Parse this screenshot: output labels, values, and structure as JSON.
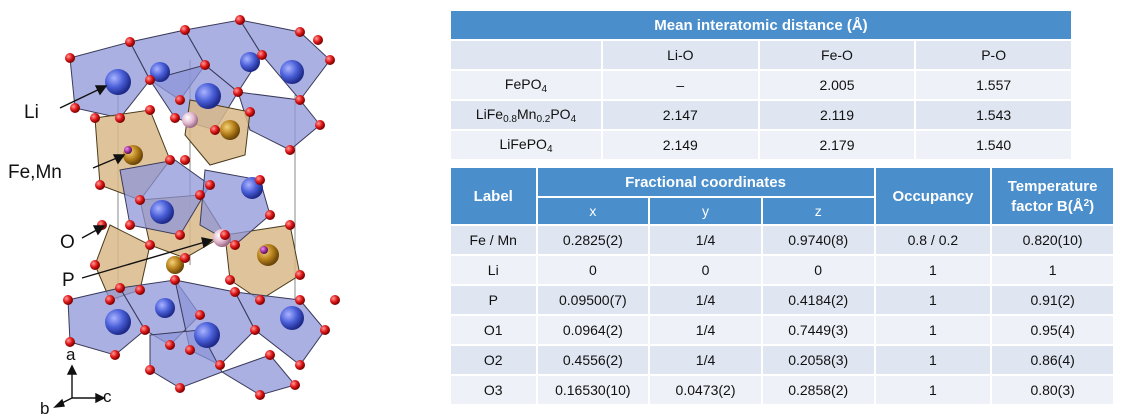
{
  "figure": {
    "labels": {
      "li": "Li",
      "fe_mn": "Fe,Mn",
      "o": "O",
      "p": "P"
    },
    "axes": {
      "a": "a",
      "b": "b",
      "c": "c"
    },
    "colors": {
      "li_atom": "#4a5fd8",
      "fe_atom": "#b8821c",
      "o_atom": "#e01818",
      "p_atom": "#d8a8c0",
      "li_polyhedra": "#8e96d8",
      "fe_polyhedra": "#d9b98a"
    }
  },
  "distance_table": {
    "title": "Mean interatomic distance (Å)",
    "columns": [
      "Li-O",
      "Fe-O",
      "P-O"
    ],
    "rows": [
      {
        "formula": [
          "FePO",
          "4",
          ""
        ],
        "values": [
          "–",
          "2.005",
          "1.557"
        ]
      },
      {
        "formula": [
          "LiFe",
          "0.8",
          "Mn",
          "0.2",
          "PO",
          "4"
        ],
        "values": [
          "2.147",
          "2.119",
          "1.543"
        ]
      },
      {
        "formula": [
          "LiFePO",
          "4",
          ""
        ],
        "values": [
          "2.149",
          "2.179",
          "1.540"
        ]
      }
    ]
  },
  "coord_table": {
    "headers": {
      "label": "Label",
      "fractional": "Fractional coordinates",
      "occupancy": "Occupancy",
      "temp_factor": "Temperature factor B(Å",
      "temp_factor_sup": "2",
      "temp_factor_end": ")"
    },
    "sub_headers": [
      "x",
      "y",
      "z"
    ],
    "rows": [
      {
        "label": "Fe / Mn",
        "x": "0.2825(2)",
        "y": "1/4",
        "z": "0.9740(8)",
        "occ": "0.8 / 0.2",
        "b": "0.820(10)"
      },
      {
        "label": "Li",
        "x": "0",
        "y": "0",
        "z": "0",
        "occ": "1",
        "b": "1"
      },
      {
        "label": "P",
        "x": "0.09500(7)",
        "y": "1/4",
        "z": "0.4184(2)",
        "occ": "1",
        "b": "0.91(2)"
      },
      {
        "label": "O1",
        "x": "0.0964(2)",
        "y": "1/4",
        "z": "0.7449(3)",
        "occ": "1",
        "b": "0.95(4)"
      },
      {
        "label": "O2",
        "x": "0.4556(2)",
        "y": "1/4",
        "z": "0.2058(3)",
        "occ": "1",
        "b": "0.86(4)"
      },
      {
        "label": "O3",
        "x": "0.16530(10)",
        "y": "0.0473(2)",
        "z": "0.2858(2)",
        "occ": "1",
        "b": "0.80(3)"
      }
    ]
  }
}
